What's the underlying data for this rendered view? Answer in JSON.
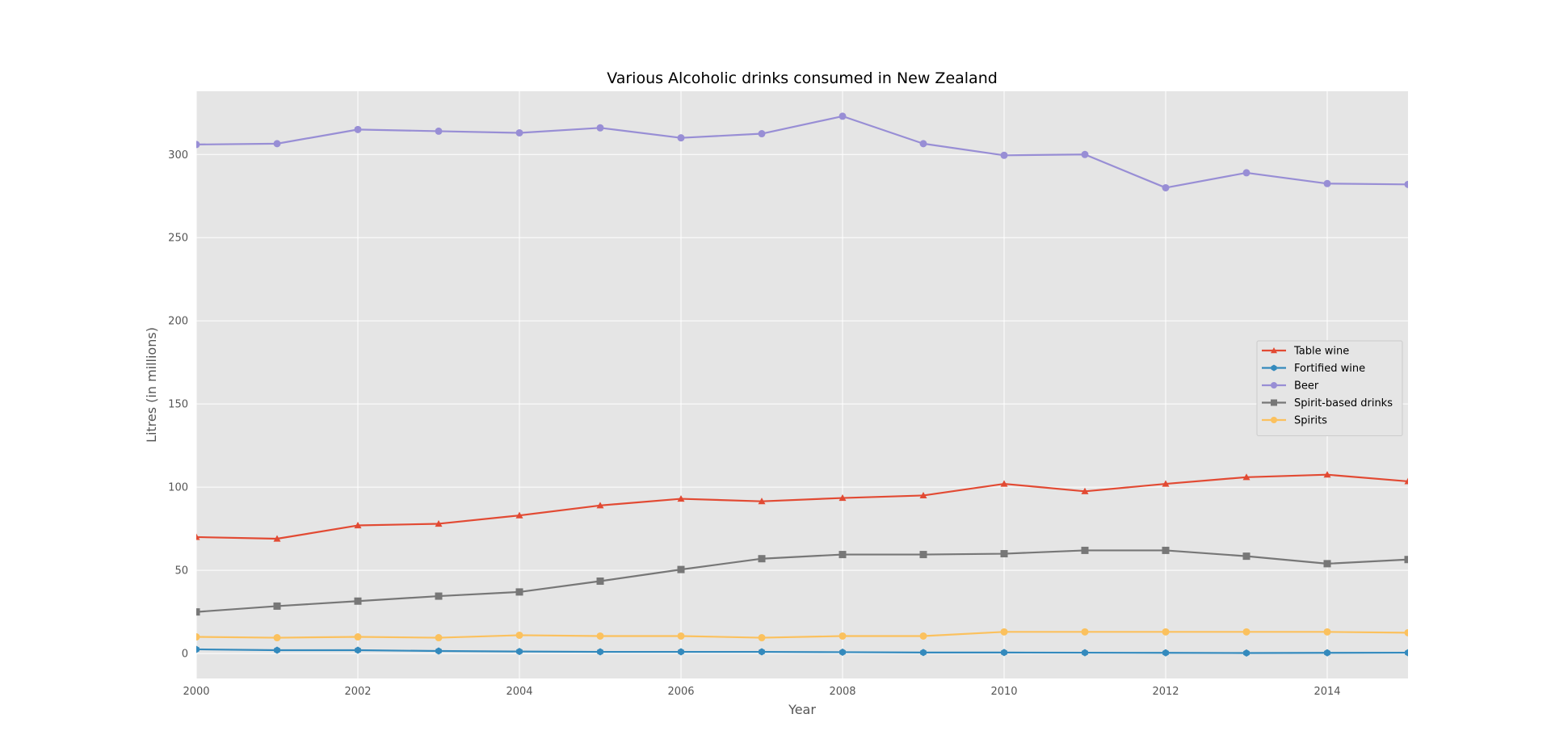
{
  "chart_data": {
    "type": "line",
    "title": "Various Alcoholic drinks consumed in New Zealand",
    "xlabel": "Year",
    "ylabel": "Litres (in millions)",
    "xlim": [
      2000,
      2015
    ],
    "ylim": [
      -15,
      338
    ],
    "xticks": [
      2000,
      2002,
      2004,
      2006,
      2008,
      2010,
      2012,
      2014
    ],
    "yticks": [
      0,
      50,
      100,
      150,
      200,
      250,
      300
    ],
    "grid": true,
    "legend_position": "center-right",
    "x": [
      2000,
      2001,
      2002,
      2003,
      2004,
      2005,
      2006,
      2007,
      2008,
      2009,
      2010,
      2011,
      2012,
      2013,
      2014,
      2015
    ],
    "series": [
      {
        "name": "Table wine",
        "color": "#E24A33",
        "marker": "triangle",
        "values": [
          70,
          69,
          77,
          78,
          83,
          89,
          93,
          91.5,
          93.5,
          95,
          102,
          97.5,
          102,
          106,
          107.5,
          103.5
        ]
      },
      {
        "name": "Fortified wine",
        "color": "#348ABD",
        "marker": "hexagon",
        "values": [
          2.5,
          2,
          2,
          1.5,
          1.2,
          1,
          1,
          1,
          0.8,
          0.6,
          0.6,
          0.5,
          0.4,
          0.3,
          0.4,
          0.5
        ]
      },
      {
        "name": "Beer",
        "color": "#988ED5",
        "marker": "circle",
        "values": [
          306,
          306.5,
          315,
          314,
          313,
          316,
          310,
          312.5,
          323,
          306.5,
          299.5,
          300,
          280,
          289,
          282.5,
          282
        ]
      },
      {
        "name": "Spirit-based drinks",
        "color": "#777777",
        "marker": "square",
        "values": [
          25,
          28.5,
          31.5,
          34.5,
          37,
          43.5,
          50.5,
          57,
          59.5,
          59.5,
          60,
          62,
          62,
          58.5,
          54,
          56.5
        ]
      },
      {
        "name": "Spirits",
        "color": "#FBC15E",
        "marker": "circle",
        "values": [
          10,
          9.5,
          10,
          9.5,
          11,
          10.5,
          10.5,
          9.5,
          10.5,
          10.5,
          13,
          13,
          13,
          13,
          13,
          12.5
        ]
      }
    ]
  }
}
